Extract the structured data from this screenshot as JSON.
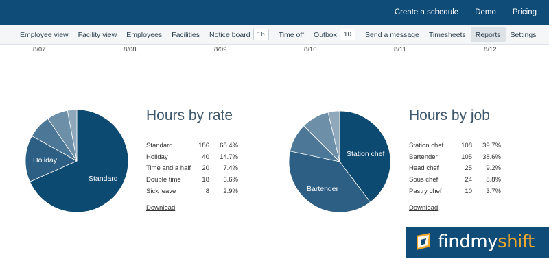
{
  "header": {
    "links": [
      "Create a schedule",
      "Demo",
      "Pricing"
    ]
  },
  "nav": {
    "items": [
      {
        "label": "Employee view"
      },
      {
        "label": "Facility view"
      },
      {
        "label": "Employees"
      },
      {
        "label": "Facilities"
      },
      {
        "label": "Notice board",
        "badge": "16"
      },
      {
        "label": "Time off"
      },
      {
        "label": "Outbox",
        "badge": "10"
      },
      {
        "label": "Send a message"
      },
      {
        "label": "Timesheets"
      },
      {
        "label": "Reports",
        "active": true
      },
      {
        "label": "Settings"
      }
    ]
  },
  "timeline": {
    "dates": [
      "8/07",
      "8/08",
      "8/09",
      "8/10",
      "8/11",
      "8/12"
    ]
  },
  "rate_report": {
    "title": "Hours by rate",
    "download_label": "Download",
    "rows": [
      {
        "label": "Standard",
        "hours": "186",
        "percent": "68.4%"
      },
      {
        "label": "Holiday",
        "hours": "40",
        "percent": "14.7%"
      },
      {
        "label": "Time and a half",
        "hours": "20",
        "percent": "7.4%"
      },
      {
        "label": "Double time",
        "hours": "18",
        "percent": "6.6%"
      },
      {
        "label": "Sick leave",
        "hours": "8",
        "percent": "2.9%"
      }
    ],
    "pie_labels": [
      "Standard",
      "Holiday"
    ]
  },
  "job_report": {
    "title": "Hours by job",
    "download_label": "Download",
    "rows": [
      {
        "label": "Station chef",
        "hours": "108",
        "percent": "39.7%"
      },
      {
        "label": "Bartender",
        "hours": "105",
        "percent": "38.6%"
      },
      {
        "label": "Head chef",
        "hours": "25",
        "percent": "9.2%"
      },
      {
        "label": "Sous chef",
        "hours": "24",
        "percent": "8.8%"
      },
      {
        "label": "Pastry chef",
        "hours": "10",
        "percent": "3.7%"
      }
    ],
    "pie_labels": [
      "Station chef",
      "Bartender"
    ]
  },
  "chart_data": [
    {
      "type": "pie",
      "title": "Hours by rate",
      "categories": [
        "Standard",
        "Holiday",
        "Time and a half",
        "Double time",
        "Sick leave"
      ],
      "values": [
        186,
        40,
        20,
        18,
        8
      ],
      "colors": [
        "#0d4a72",
        "#2d5f84",
        "#4c7797",
        "#6d8fa8",
        "#8fa8bb"
      ]
    },
    {
      "type": "pie",
      "title": "Hours by job",
      "categories": [
        "Station chef",
        "Bartender",
        "Head chef",
        "Sous chef",
        "Pastry chef"
      ],
      "values": [
        108,
        105,
        25,
        24,
        10
      ],
      "colors": [
        "#0d4a72",
        "#2d5f84",
        "#4c7797",
        "#6d8fa8",
        "#8fa8bb"
      ]
    }
  ],
  "logo": {
    "text_a": "findmy",
    "text_b": "shift"
  }
}
